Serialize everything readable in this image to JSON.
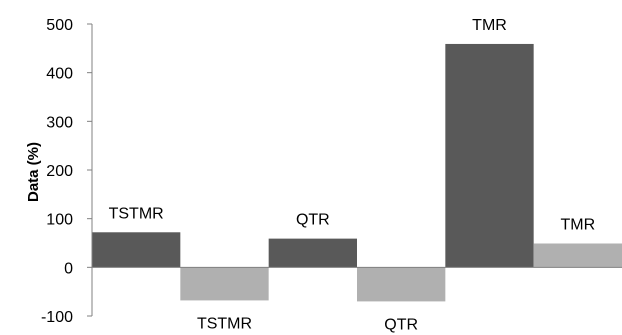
{
  "chart_data": {
    "type": "bar",
    "title": "",
    "xlabel": "",
    "ylabel": "Data (%)",
    "ylim": [
      -100,
      500
    ],
    "yticks": [
      -100,
      0,
      100,
      200,
      300,
      400,
      500
    ],
    "grid": false,
    "legend": "none",
    "bars": [
      {
        "label": "TSTMR",
        "value": 72,
        "color": "#595959"
      },
      {
        "label": "TSTMR",
        "value": -68,
        "color": "#b0b0b0"
      },
      {
        "label": "QTR",
        "value": 59,
        "color": "#595959"
      },
      {
        "label": "QTR",
        "value": -70,
        "color": "#b0b0b0"
      },
      {
        "label": "TMR",
        "value": 459,
        "color": "#595959"
      },
      {
        "label": "TMR",
        "value": 49,
        "color": "#b0b0b0"
      }
    ],
    "colors": {
      "dark_bars": "#595959",
      "light_bars": "#b0b0b0",
      "axis": "#808080"
    }
  }
}
